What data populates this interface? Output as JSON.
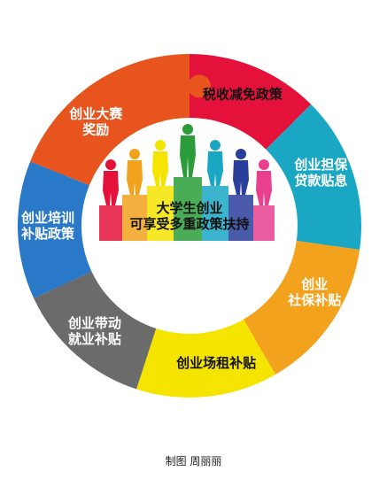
{
  "diagram": {
    "center": {
      "line1": "大学生创业",
      "line2": "可享受多重政策扶持"
    },
    "segments": [
      {
        "id": "tax",
        "label_lines": [
          "税收减免政策"
        ],
        "color": "#e4123a",
        "text_color": "#111111"
      },
      {
        "id": "loan",
        "label_lines": [
          "创业担保",
          "贷款贴息"
        ],
        "color": "#1aa7c4",
        "text_color": "#ffffff"
      },
      {
        "id": "social",
        "label_lines": [
          "创业",
          "社保补贴"
        ],
        "color": "#f2a21c",
        "text_color": "#ffffff"
      },
      {
        "id": "rent",
        "label_lines": [
          "创业场租补贴"
        ],
        "color": "#f5e400",
        "text_color": "#111111"
      },
      {
        "id": "employ",
        "label_lines": [
          "创业带动",
          "就业补贴"
        ],
        "color": "#6b6b6b",
        "text_color": "#ffffff"
      },
      {
        "id": "training",
        "label_lines": [
          "创业培训",
          "补贴政策"
        ],
        "color": "#2a78c8",
        "text_color": "#ffffff"
      },
      {
        "id": "contest",
        "label_lines": [
          "创业大赛",
          "奖励"
        ],
        "color": "#e8541e",
        "text_color": "#ffffff"
      }
    ],
    "figure_colors": [
      "#e4123a",
      "#f2a21c",
      "#f5e400",
      "#2a9d3a",
      "#1aa7c4",
      "#2a3e9c",
      "#e8408f"
    ]
  },
  "credit": "制图  周丽丽"
}
